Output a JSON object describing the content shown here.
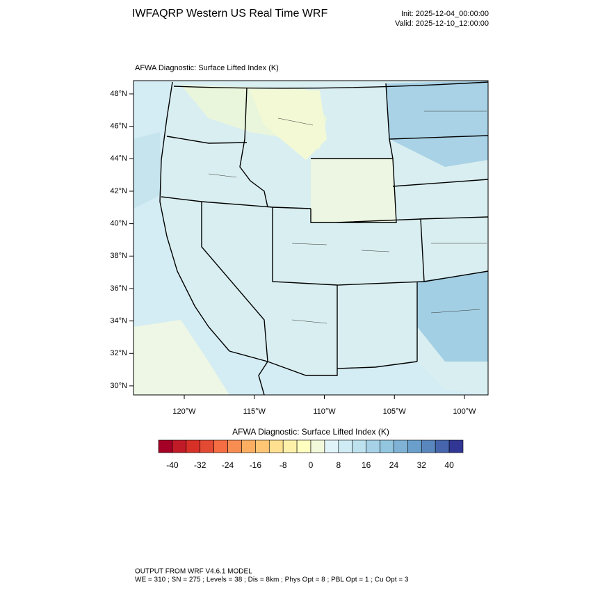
{
  "header": {
    "title": "IWFAQRP Western US Real Time WRF",
    "init": "Init: 2025-12-04_00:00:00",
    "valid": "Valid: 2025-12-10_12:00:00"
  },
  "map": {
    "title": "AFWA Diagnostic: Surface Lifted Index   (K)",
    "lat_ticks": [
      {
        "value": 30,
        "label": "30°N"
      },
      {
        "value": 32,
        "label": "32°N"
      },
      {
        "value": 34,
        "label": "34°N"
      },
      {
        "value": 36,
        "label": "36°N"
      },
      {
        "value": 38,
        "label": "38°N"
      },
      {
        "value": 40,
        "label": "40°N"
      },
      {
        "value": 42,
        "label": "42°N"
      },
      {
        "value": 44,
        "label": "44°N"
      },
      {
        "value": 46,
        "label": "46°N"
      },
      {
        "value": 48,
        "label": "48°N"
      }
    ],
    "lon_ticks": [
      {
        "value": -120,
        "label": "120°W"
      },
      {
        "value": -115,
        "label": "115°W"
      },
      {
        "value": -110,
        "label": "110°W"
      },
      {
        "value": -105,
        "label": "105°W"
      },
      {
        "value": -100,
        "label": "100°W"
      }
    ]
  },
  "colorbar": {
    "title": "AFWA Diagnostic: Surface Lifted Index  (K)",
    "range": [
      -44,
      44
    ],
    "colors": [
      "#a50026",
      "#c11b28",
      "#d73027",
      "#e34a33",
      "#f46d43",
      "#f88d52",
      "#fdae61",
      "#fdc574",
      "#fee090",
      "#fef0a8",
      "#ffffbf",
      "#f1f9da",
      "#e0f3f8",
      "#cfebf3",
      "#bde2ee",
      "#a6d1e6",
      "#92c5de",
      "#7fb2d5",
      "#6a9fcb",
      "#5a86be",
      "#4665ad",
      "#313695"
    ],
    "ticks": [
      -40,
      -32,
      -24,
      -16,
      -8,
      0,
      8,
      16,
      24,
      32,
      40
    ]
  },
  "footer": {
    "line1": "OUTPUT FROM WRF V4.6.1 MODEL",
    "line2": "WE = 310 ; SN = 275 ; Levels = 38 ; Dis = 8km ; Phys Opt = 8 ; PBL Opt = 1 ; Cu Opt = 3"
  }
}
